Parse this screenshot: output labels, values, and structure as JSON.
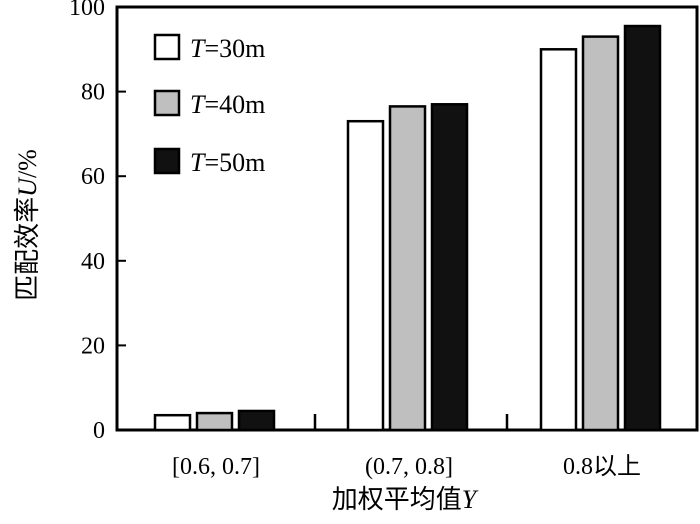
{
  "chart_data": {
    "type": "bar",
    "xlabel": "加权平均值",
    "xlabel_var": "Y",
    "ylabel": "匹配效率",
    "ylabel_var": "U",
    "ylabel_unit": "/%",
    "ylim": [
      0,
      100
    ],
    "yticks": [
      "0",
      "20",
      "40",
      "60",
      "80",
      "100"
    ],
    "grid": false,
    "legend_position": "top-left",
    "categories": [
      "[0.6, 0.7]",
      "(0.7, 0.8]",
      "0.8以上"
    ],
    "series": [
      {
        "var": "T",
        "eq": "=30m",
        "fill": "#ffffff",
        "values": [
          3.5,
          73,
          90
        ]
      },
      {
        "var": "T",
        "eq": "=40m",
        "fill": "#bfbfbf",
        "values": [
          4,
          76.5,
          93
        ]
      },
      {
        "var": "T",
        "eq": "=50m",
        "fill": "#111111",
        "values": [
          4.5,
          77,
          95.5
        ]
      }
    ]
  }
}
